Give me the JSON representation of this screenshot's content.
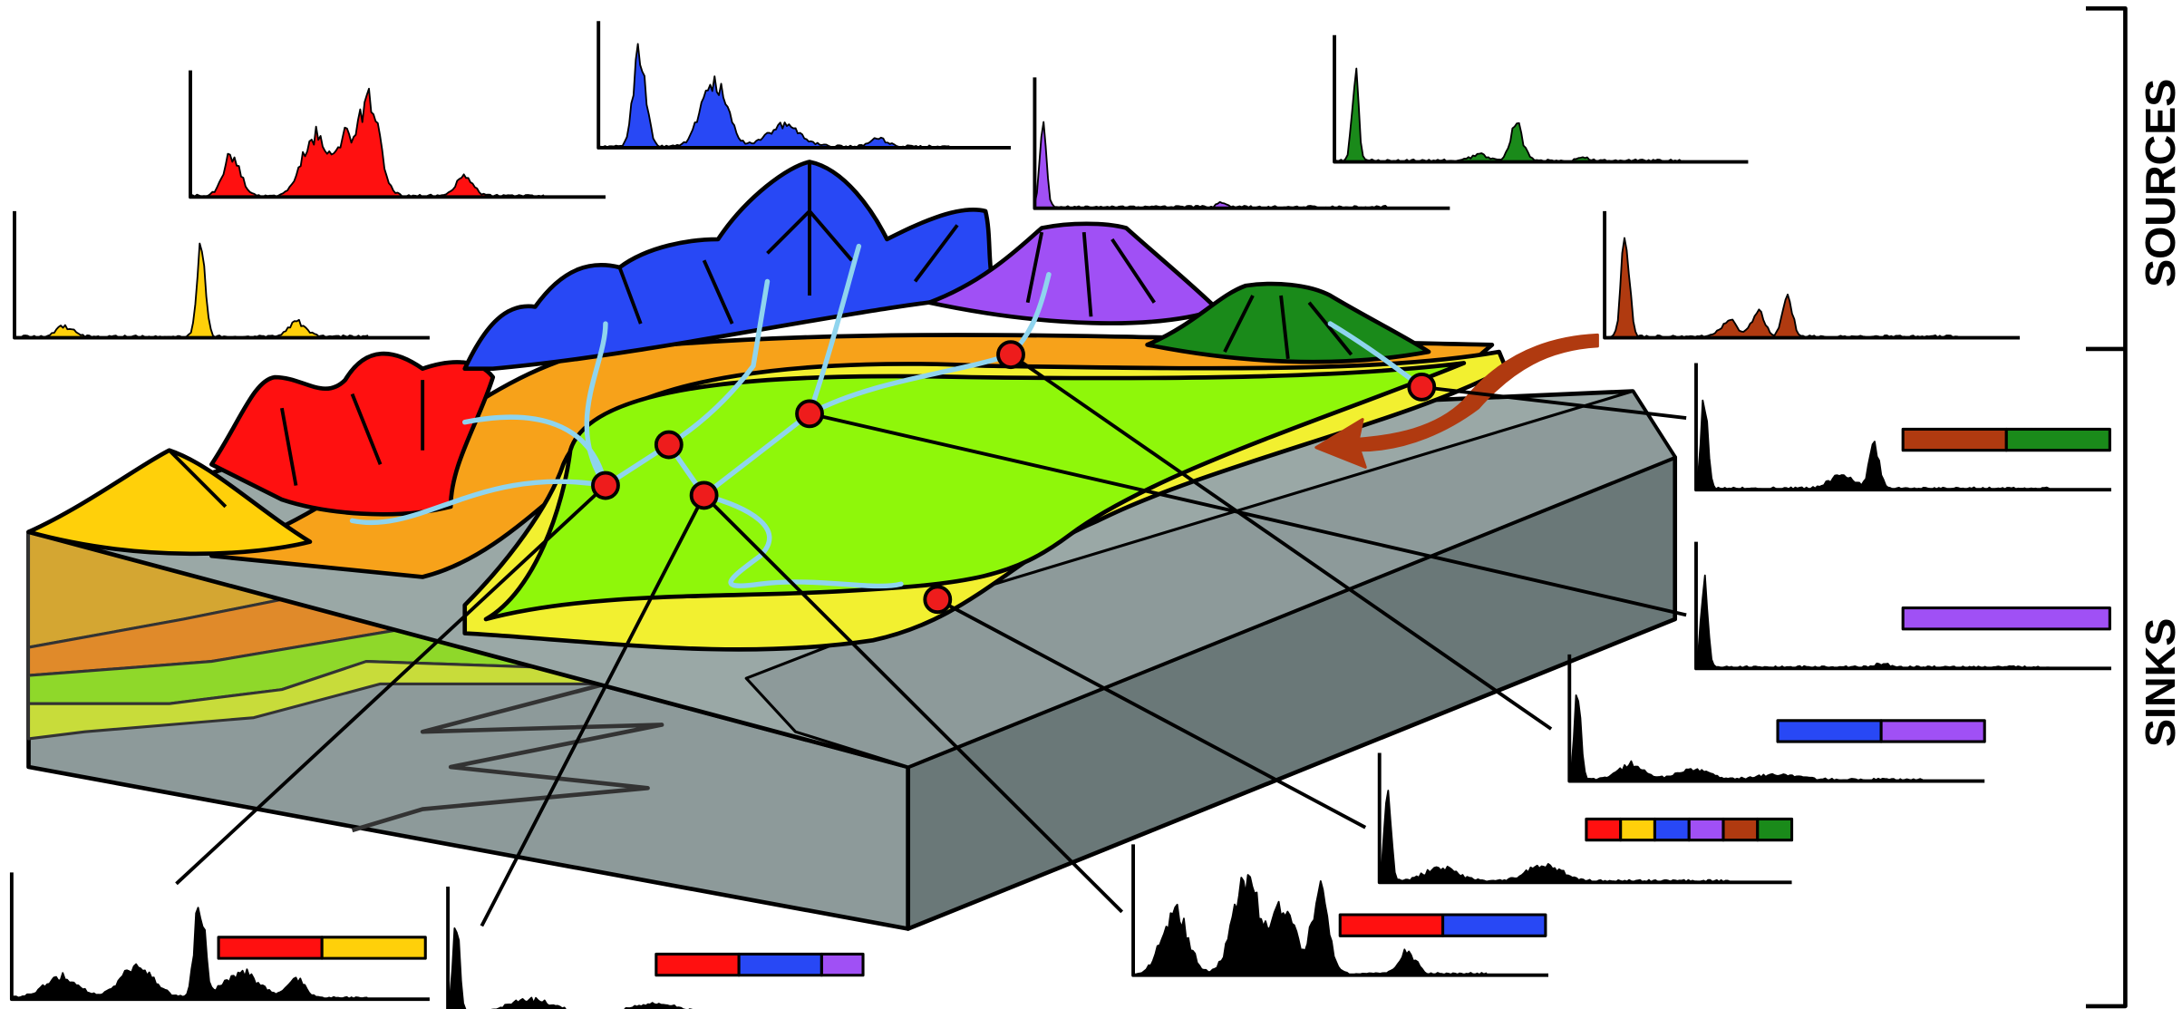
{
  "labels": {
    "sources": "SOURCES",
    "sinks": "SINKS"
  }
}
